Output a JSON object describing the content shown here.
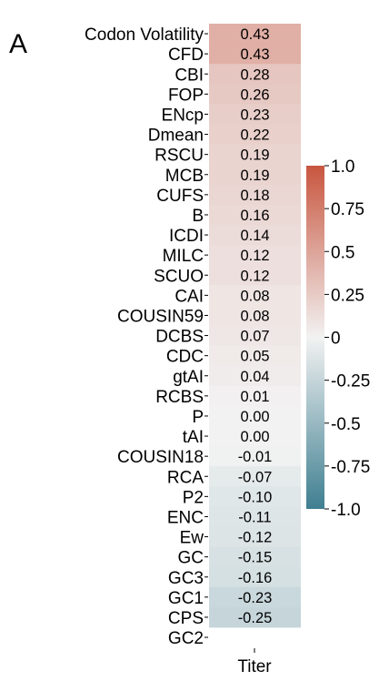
{
  "panel_letter": "A",
  "chart_data": {
    "type": "heatmap",
    "x_categories": [
      "Titer"
    ],
    "rows": [
      {
        "label": "Codon Volatility",
        "value": 0.43,
        "text": "0.43"
      },
      {
        "label": "CFD",
        "value": 0.43,
        "text": "0.43"
      },
      {
        "label": "CBI",
        "value": 0.28,
        "text": "0.28"
      },
      {
        "label": "FOP",
        "value": 0.26,
        "text": "0.26"
      },
      {
        "label": "ENcp",
        "value": 0.23,
        "text": "0.23"
      },
      {
        "label": "Dmean",
        "value": 0.22,
        "text": "0.22"
      },
      {
        "label": "RSCU",
        "value": 0.19,
        "text": "0.19"
      },
      {
        "label": "MCB",
        "value": 0.19,
        "text": "0.19"
      },
      {
        "label": "CUFS",
        "value": 0.18,
        "text": "0.18"
      },
      {
        "label": "B",
        "value": 0.16,
        "text": "0.16"
      },
      {
        "label": "ICDI",
        "value": 0.14,
        "text": "0.14"
      },
      {
        "label": "MILC",
        "value": 0.12,
        "text": "0.12"
      },
      {
        "label": "SCUO",
        "value": 0.12,
        "text": "0.12"
      },
      {
        "label": "CAI",
        "value": 0.08,
        "text": "0.08"
      },
      {
        "label": "COUSIN59",
        "value": 0.08,
        "text": "0.08"
      },
      {
        "label": "DCBS",
        "value": 0.07,
        "text": "0.07"
      },
      {
        "label": "CDC",
        "value": 0.05,
        "text": "0.05"
      },
      {
        "label": "gtAI",
        "value": 0.04,
        "text": "0.04"
      },
      {
        "label": "RCBS",
        "value": 0.01,
        "text": "0.01"
      },
      {
        "label": "P",
        "value": 0.0,
        "text": "0.00"
      },
      {
        "label": "tAI",
        "value": 0.0,
        "text": "0.00"
      },
      {
        "label": "COUSIN18",
        "value": -0.01,
        "text": "-0.01"
      },
      {
        "label": "RCA",
        "value": -0.07,
        "text": "-0.07"
      },
      {
        "label": "P2",
        "value": -0.1,
        "text": "-0.10"
      },
      {
        "label": "ENC",
        "value": -0.11,
        "text": "-0.11"
      },
      {
        "label": "Ew",
        "value": -0.12,
        "text": "-0.12"
      },
      {
        "label": "GC",
        "value": -0.15,
        "text": "-0.15"
      },
      {
        "label": "GC3",
        "value": -0.16,
        "text": "-0.16"
      },
      {
        "label": "GC1",
        "value": -0.23,
        "text": "-0.23"
      },
      {
        "label": "CPS",
        "value": -0.25,
        "text": "-0.25"
      },
      {
        "label": "GC2",
        "value": null,
        "text": ""
      }
    ],
    "colorbar": {
      "range": [
        -1.0,
        1.0
      ],
      "ticks": [
        {
          "value": 1.0,
          "label": "1.0"
        },
        {
          "value": 0.75,
          "label": "0.75"
        },
        {
          "value": 0.5,
          "label": "0.5"
        },
        {
          "value": 0.25,
          "label": "0.25"
        },
        {
          "value": 0.0,
          "label": "0"
        },
        {
          "value": -0.25,
          "label": "-0.25"
        },
        {
          "value": -0.5,
          "label": "-0.5"
        },
        {
          "value": -0.75,
          "label": "-0.75"
        },
        {
          "value": -1.0,
          "label": "-1.0"
        }
      ],
      "color_positive": "#c8563f",
      "color_zero": "#f2f2f2",
      "color_negative": "#3f7f91"
    }
  }
}
